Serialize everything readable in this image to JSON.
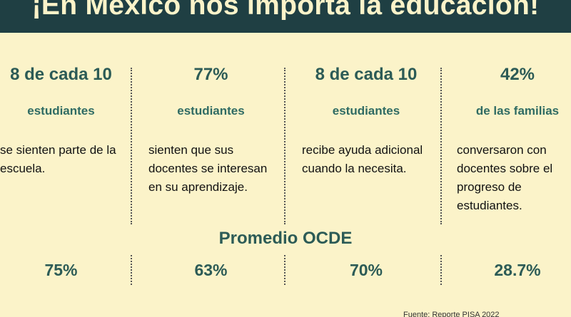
{
  "banner": {
    "title": "¡En México nos importa la educación!"
  },
  "columns": [
    {
      "headline": "8 de cada 10",
      "subject": "estudiantes",
      "description": "se sienten parte de la escuela.",
      "ocde_value": "75%"
    },
    {
      "headline": "77%",
      "subject": "estudiantes",
      "description": "sienten que sus docentes se interesan en su aprendizaje.",
      "ocde_value": "63%"
    },
    {
      "headline": "8 de cada 10",
      "subject": "estudiantes",
      "description": "recibe ayuda adicional cuando la necesita.",
      "ocde_value": "70%"
    },
    {
      "headline": "42%",
      "subject": "de las familias",
      "description": "conversaron con docentes sobre el progreso de estudiantes.",
      "ocde_value": "28.7%"
    }
  ],
  "ocde": {
    "title": "Promedio OCDE"
  },
  "footer": {
    "source": "Fuente: Reporte PISA 2022"
  },
  "colors": {
    "banner": "#1f3f43",
    "background": "#fbf3c9",
    "accent": "#2c5b56"
  }
}
